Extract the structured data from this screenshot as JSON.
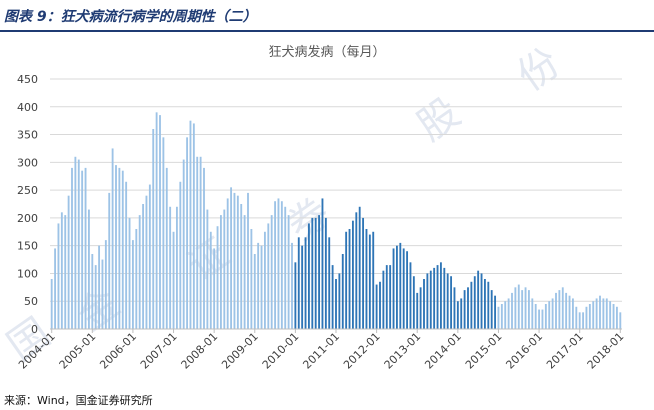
{
  "header": {
    "title": "图表 9：狂犬病流行病学的周期性（二）"
  },
  "footer": {
    "source": "来源：Wind，国金证券研究所"
  },
  "colors": {
    "bar_light": "#9dc3e6",
    "bar_dark": "#2e75b6",
    "title_color": "#1f3b73"
  },
  "chart_data": {
    "type": "bar",
    "title": "狂犬病发病（每月）",
    "xlabel": "",
    "ylabel": "",
    "ylim": [
      0,
      450
    ],
    "yticks": [
      0,
      50,
      100,
      150,
      200,
      250,
      300,
      350,
      400,
      450
    ],
    "xtick_labels": [
      "2004-01",
      "2005-01",
      "2006-01",
      "2007-01",
      "2008-01",
      "2009-01",
      "2010-01",
      "2011-01",
      "2012-01",
      "2013-01",
      "2014-01",
      "2015-01",
      "2016-01",
      "2017-01",
      "2018-01"
    ],
    "grid": "horizontal",
    "start": "2004-01",
    "highlight_period": [
      "2010-01",
      "2014-12"
    ],
    "values": [
      90,
      145,
      190,
      210,
      205,
      240,
      290,
      310,
      305,
      285,
      290,
      215,
      135,
      115,
      150,
      125,
      160,
      245,
      325,
      295,
      290,
      285,
      265,
      200,
      160,
      180,
      205,
      225,
      240,
      260,
      360,
      390,
      385,
      345,
      290,
      220,
      175,
      220,
      265,
      305,
      345,
      375,
      370,
      310,
      310,
      290,
      215,
      175,
      145,
      185,
      205,
      215,
      235,
      255,
      245,
      240,
      225,
      205,
      245,
      180,
      135,
      155,
      150,
      175,
      190,
      205,
      230,
      235,
      230,
      220,
      205,
      155,
      120,
      165,
      150,
      165,
      190,
      200,
      200,
      205,
      235,
      200,
      165,
      115,
      90,
      100,
      135,
      175,
      180,
      195,
      210,
      220,
      200,
      180,
      170,
      175,
      80,
      85,
      105,
      115,
      115,
      145,
      150,
      155,
      145,
      140,
      120,
      95,
      65,
      75,
      90,
      100,
      105,
      110,
      115,
      120,
      110,
      100,
      95,
      75,
      50,
      55,
      70,
      75,
      85,
      95,
      105,
      100,
      90,
      85,
      70,
      60,
      40,
      45,
      50,
      55,
      65,
      75,
      80,
      70,
      75,
      70,
      55,
      45,
      35,
      35,
      45,
      50,
      55,
      65,
      70,
      75,
      65,
      60,
      55,
      40,
      30,
      30,
      40,
      45,
      50,
      55,
      60,
      55,
      55,
      50,
      45,
      40,
      30
    ]
  }
}
